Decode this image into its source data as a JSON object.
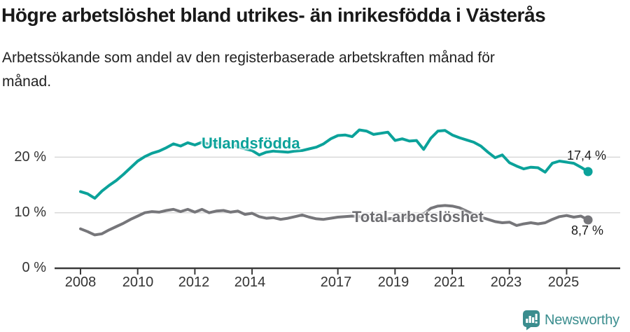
{
  "header": {
    "title": "Högre arbetslöshet bland utrikes- än inrikesfödda i Västerås",
    "subtitle_lines": [
      "Arbetssökande som andel av den registerbaserade arbetskraften månad för",
      "månad."
    ]
  },
  "chart_data": {
    "type": "line",
    "title": "Högre arbetslöshet bland utrikes- än inrikesfödda i Västerås",
    "subtitle": "Arbetssökande som andel av den registerbaserade arbetskraften månad för månad.",
    "unit": "percent",
    "x_start": 2008.0,
    "x_step_years": 0.25,
    "x_end": 2025.75,
    "x_axis": {
      "tick_years": [
        2008,
        2010,
        2012,
        2014,
        2017,
        2019,
        2021,
        2023,
        2025
      ],
      "tick_labels": [
        "2008",
        "2010",
        "2012",
        "2014",
        "2017",
        "2019",
        "2021",
        "2023",
        "2025"
      ]
    },
    "y_axis": {
      "ticks": [
        0,
        10,
        20
      ],
      "tick_labels": [
        "0 %",
        "10 %",
        "20 %"
      ],
      "range": [
        0,
        27
      ],
      "gridlines": true
    },
    "legend_position": "inline-labels",
    "series": [
      {
        "name": "Utlandsfödda",
        "color": "#0ba29a",
        "end_value": 17.4,
        "end_label": "17,4 %",
        "values": [
          13.8,
          13.4,
          12.6,
          13.9,
          14.9,
          15.8,
          16.9,
          18.1,
          19.3,
          20.1,
          20.7,
          21.1,
          21.7,
          22.4,
          22.0,
          22.6,
          22.2,
          22.7,
          22.3,
          22.5,
          22.1,
          22.4,
          21.9,
          21.5,
          21.2,
          20.4,
          20.9,
          21.1,
          21.0,
          20.9,
          21.1,
          21.2,
          21.5,
          21.8,
          22.4,
          23.3,
          23.9,
          24.0,
          23.7,
          24.9,
          24.7,
          24.1,
          24.3,
          24.5,
          23.0,
          23.3,
          22.9,
          23.0,
          21.4,
          23.4,
          24.7,
          24.8,
          24.0,
          23.5,
          23.1,
          22.7,
          22.0,
          20.9,
          19.9,
          20.4,
          19.0,
          18.4,
          17.9,
          18.2,
          18.1,
          17.3,
          18.9,
          19.3,
          19.1,
          18.9,
          18.2,
          17.4
        ]
      },
      {
        "name": "Total arbetslöshet",
        "color": "#76767a",
        "end_value": 8.7,
        "end_label": "8,7 %",
        "values": [
          7.1,
          6.6,
          6.0,
          6.2,
          6.9,
          7.5,
          8.1,
          8.8,
          9.4,
          10.0,
          10.2,
          10.1,
          10.4,
          10.6,
          10.2,
          10.6,
          10.1,
          10.6,
          10.0,
          10.3,
          10.4,
          10.1,
          10.3,
          9.7,
          9.9,
          9.3,
          9.0,
          9.1,
          8.8,
          9.0,
          9.3,
          9.6,
          9.2,
          8.9,
          8.8,
          9.0,
          9.2,
          9.3,
          9.4,
          9.3,
          9.1,
          9.0,
          8.9,
          8.9,
          9.0,
          9.1,
          9.2,
          9.4,
          9.8,
          10.8,
          11.2,
          11.3,
          11.2,
          10.9,
          10.3,
          9.7,
          9.2,
          8.8,
          8.4,
          8.2,
          8.3,
          7.7,
          8.0,
          8.2,
          8.0,
          8.2,
          8.8,
          9.3,
          9.5,
          9.2,
          9.4,
          8.7
        ]
      }
    ]
  },
  "footer": {
    "brand": "Newsworthy",
    "brand_color": "#3a8d8e"
  }
}
